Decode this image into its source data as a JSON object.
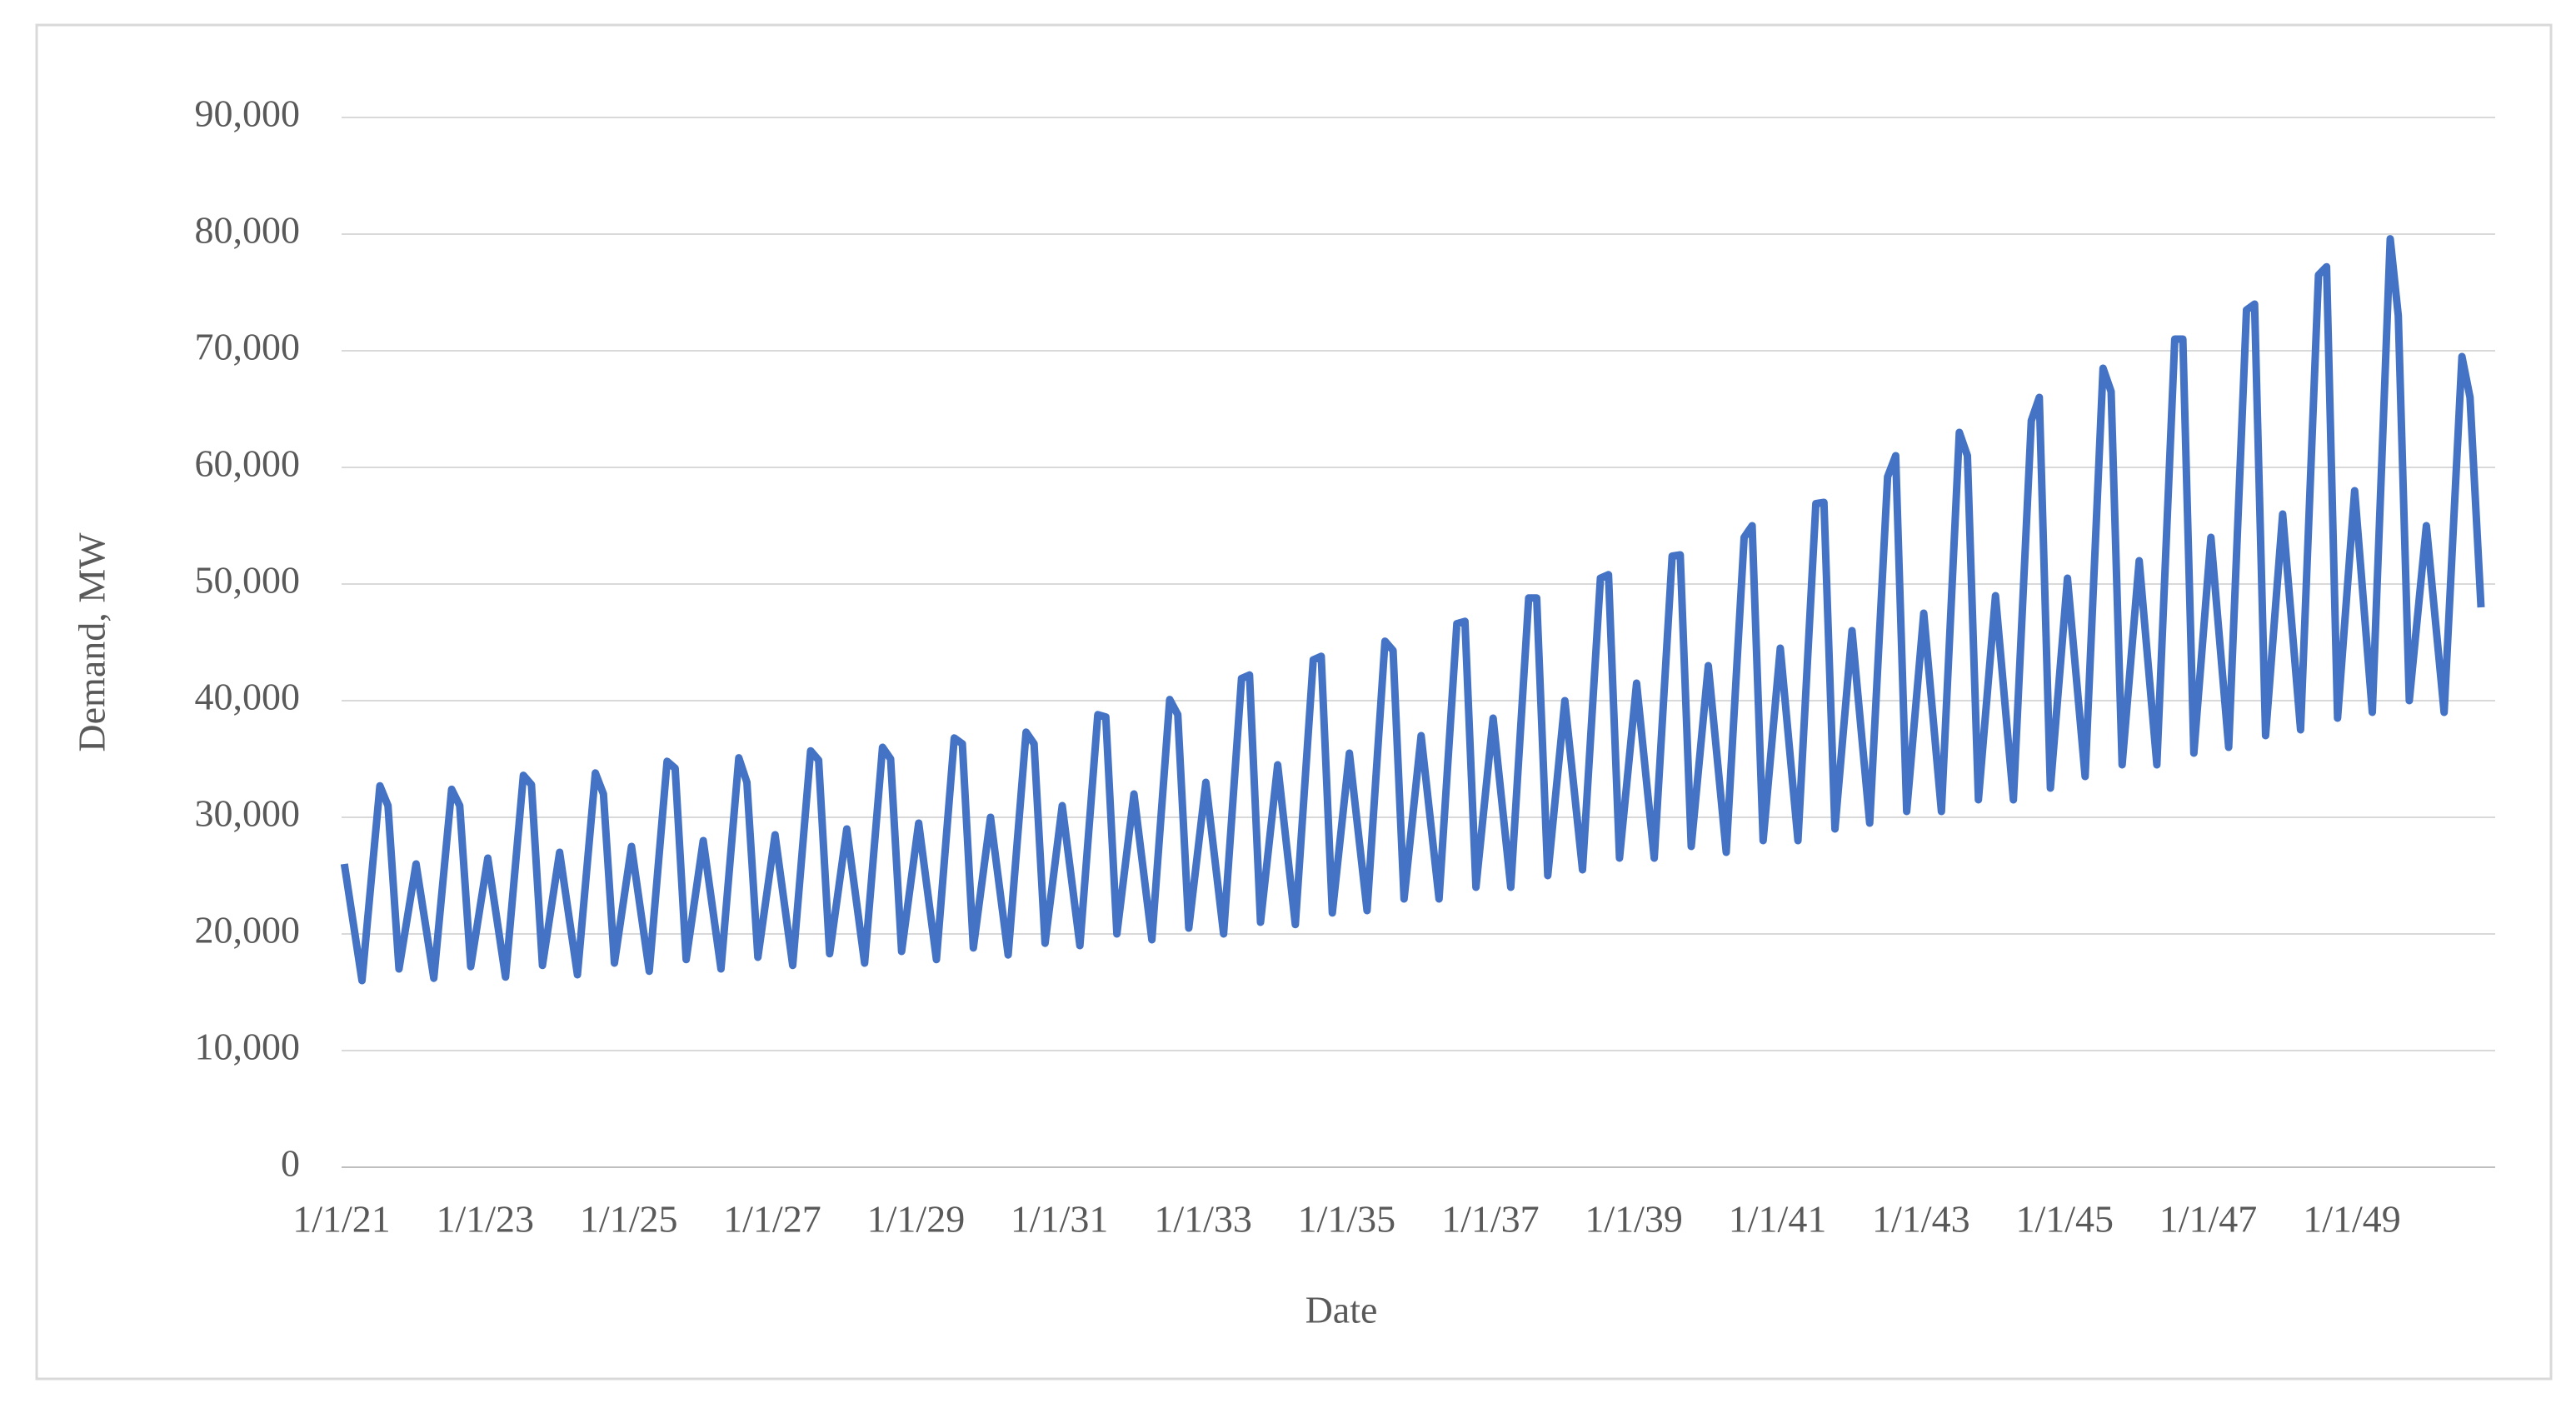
{
  "chart_data": {
    "type": "line",
    "x_label": "Date",
    "y_label": "Demand, MW",
    "color": "#4472c4",
    "grid": true,
    "xlim": [
      "1/1/21",
      "12/31/50"
    ],
    "xticks": [
      "1/1/21",
      "1/1/23",
      "1/1/25",
      "1/1/27",
      "1/1/29",
      "1/1/31",
      "1/1/33",
      "1/1/35",
      "1/1/37",
      "1/1/39",
      "1/1/41",
      "1/1/43",
      "1/1/45",
      "1/1/47",
      "1/1/49"
    ],
    "ylim": [
      0,
      90000
    ],
    "yticks": [
      0,
      {
        "value": 10000,
        "label": "10,000"
      },
      {
        "value": 20000,
        "label": "20,000"
      },
      {
        "value": 30000,
        "label": "30,000"
      },
      {
        "value": 40000,
        "label": "40,000"
      },
      {
        "value": 50000,
        "label": "50,000"
      },
      {
        "value": 60000,
        "label": "60,000"
      },
      {
        "value": 70000,
        "label": "70,000"
      },
      {
        "value": 80000,
        "label": "80,000"
      },
      {
        "value": 90000,
        "label": "90,000"
      }
    ],
    "x": [
      "1/15/21",
      "4/15/21",
      "7/15/21",
      "8/25/21",
      "10/20/21",
      "1/15/22",
      "4/15/22",
      "7/15/22",
      "8/25/22",
      "10/20/22",
      "1/15/23",
      "4/15/23",
      "7/15/23",
      "8/25/23",
      "10/20/23",
      "1/15/24",
      "4/15/24",
      "7/15/24",
      "8/25/24",
      "10/20/24",
      "1/15/25",
      "4/15/25",
      "7/15/25",
      "8/25/25",
      "10/20/25",
      "1/15/26",
      "4/15/26",
      "7/15/26",
      "8/25/26",
      "10/20/26",
      "1/15/27",
      "4/15/27",
      "7/15/27",
      "8/25/27",
      "10/20/27",
      "1/15/28",
      "4/15/28",
      "7/15/28",
      "8/25/28",
      "10/20/28",
      "1/15/29",
      "4/15/29",
      "7/15/29",
      "8/25/29",
      "10/20/29",
      "1/15/30",
      "4/15/30",
      "7/15/30",
      "8/25/30",
      "10/20/30",
      "1/15/31",
      "4/15/31",
      "7/15/31",
      "8/25/31",
      "10/20/31",
      "1/15/32",
      "4/15/32",
      "7/15/32",
      "8/25/32",
      "10/20/32",
      "1/15/33",
      "4/15/33",
      "7/15/33",
      "8/25/33",
      "10/20/33",
      "1/15/34",
      "4/15/34",
      "7/15/34",
      "8/25/34",
      "10/20/34",
      "1/15/35",
      "4/15/35",
      "7/15/35",
      "8/25/35",
      "10/20/35",
      "1/15/36",
      "4/15/36",
      "7/15/36",
      "8/25/36",
      "10/20/36",
      "1/15/37",
      "4/15/37",
      "7/15/37",
      "8/25/37",
      "10/20/37",
      "1/15/38",
      "4/15/38",
      "7/15/38",
      "8/25/38",
      "10/20/38",
      "1/15/39",
      "4/15/39",
      "7/15/39",
      "8/25/39",
      "10/20/39",
      "1/15/40",
      "4/15/40",
      "7/15/40",
      "8/25/40",
      "10/20/40",
      "1/15/41",
      "4/15/41",
      "7/15/41",
      "8/25/41",
      "10/20/41",
      "1/15/42",
      "4/15/42",
      "7/15/42",
      "8/25/42",
      "10/20/42",
      "1/15/43",
      "4/15/43",
      "7/15/43",
      "8/25/43",
      "10/20/43",
      "1/15/44",
      "4/15/44",
      "7/15/44",
      "8/25/44",
      "10/20/44",
      "1/15/45",
      "4/15/45",
      "7/15/45",
      "8/25/45",
      "10/20/45",
      "1/15/46",
      "4/15/46",
      "7/15/46",
      "8/25/46",
      "10/20/46",
      "1/15/47",
      "4/15/47",
      "7/15/47",
      "8/25/47",
      "10/20/47",
      "1/15/48",
      "4/15/48",
      "7/15/48",
      "8/25/48",
      "10/20/48",
      "1/15/49",
      "4/15/49",
      "7/15/49",
      "8/25/49",
      "10/20/49",
      "1/15/50",
      "4/15/50",
      "7/15/50",
      "8/25/50",
      "10/20/50"
    ],
    "values": [
      26000,
      16000,
      32700,
      31000,
      17000,
      26000,
      16200,
      32400,
      31000,
      17200,
      26500,
      16300,
      33600,
      32800,
      17300,
      27000,
      16500,
      33800,
      32000,
      17500,
      27500,
      16800,
      34800,
      34200,
      17800,
      28000,
      17000,
      35100,
      33000,
      18000,
      28500,
      17300,
      35700,
      34900,
      18300,
      29000,
      17500,
      36000,
      35000,
      18500,
      29500,
      17800,
      36800,
      36300,
      18800,
      30000,
      18200,
      37300,
      36300,
      19200,
      31000,
      19000,
      38800,
      38600,
      20000,
      32000,
      19500,
      40100,
      38800,
      20500,
      33000,
      20000,
      41900,
      42200,
      21000,
      34500,
      20800,
      43500,
      43800,
      21800,
      35500,
      22000,
      45100,
      44300,
      23000,
      37000,
      23000,
      46600,
      46800,
      24000,
      38500,
      24000,
      48800,
      48800,
      25000,
      40000,
      25500,
      50500,
      50800,
      26500,
      41500,
      26500,
      52400,
      52500,
      27500,
      43000,
      27000,
      54000,
      55000,
      28000,
      44500,
      28000,
      56900,
      57000,
      29000,
      46000,
      29500,
      59200,
      61000,
      30500,
      47500,
      30500,
      63000,
      61000,
      31500,
      49000,
      31500,
      64000,
      66000,
      32500,
      50500,
      33500,
      68500,
      66500,
      34500,
      52000,
      34500,
      71000,
      71000,
      35500,
      54000,
      36000,
      73500,
      74000,
      37000,
      56000,
      37500,
      76500,
      77200,
      38500,
      58000,
      39000,
      79600,
      73000,
      40000,
      55000,
      39000,
      69500,
      66000,
      48000
    ]
  }
}
